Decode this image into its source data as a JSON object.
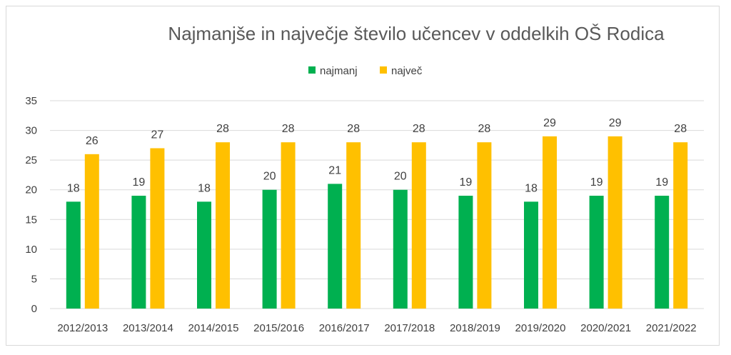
{
  "chart_data": {
    "type": "bar",
    "title": "Najmanjše in največje število učencev v oddelkih OŠ Rodica",
    "categories": [
      "2012/2013",
      "2013/2014",
      "2014/2015",
      "2015/2016",
      "2016/2017",
      "2017/2018",
      "2018/2019",
      "2019/2020",
      "2020/2021",
      "2021/2022"
    ],
    "series": [
      {
        "name": "najmanj",
        "color": "#00b050",
        "values": [
          18,
          19,
          18,
          20,
          21,
          20,
          19,
          18,
          19,
          19
        ]
      },
      {
        "name": "največ",
        "color": "#ffc000",
        "values": [
          26,
          27,
          28,
          28,
          28,
          28,
          28,
          29,
          29,
          28
        ]
      }
    ],
    "ylim": [
      0,
      35
    ],
    "yticks": [
      0,
      5,
      10,
      15,
      20,
      25,
      30,
      35
    ],
    "grid": true,
    "legend": "top-center",
    "data_labels": true
  }
}
